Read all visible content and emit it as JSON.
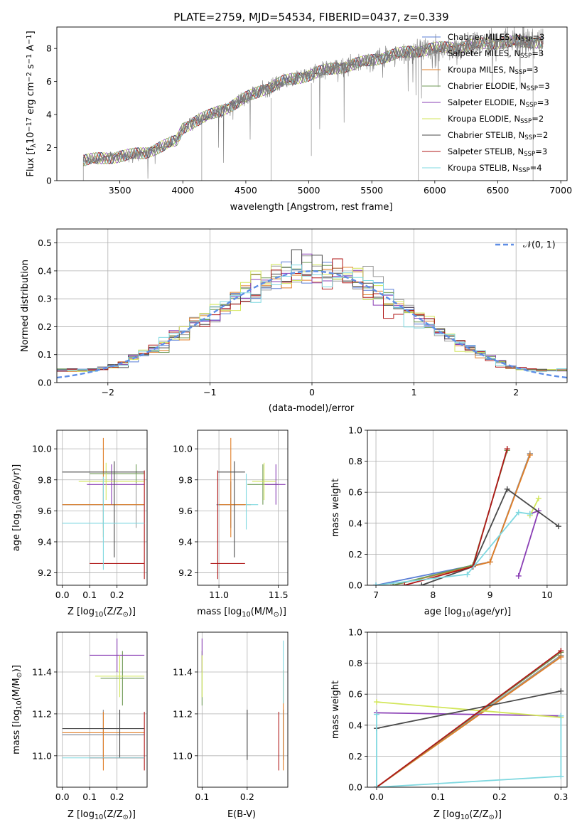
{
  "title": "PLATE=2759, MJD=54534, FIBERID=0437, z=0.339",
  "models": [
    {
      "label": "Chabrier MILES, N",
      "sub": "SSP",
      "tail": "=3",
      "color": "#5b7fd6"
    },
    {
      "label": "Salpeter MILES, N",
      "sub": "SSP",
      "tail": "=3",
      "color": "#9a9a9a"
    },
    {
      "label": "Kroupa MILES, N",
      "sub": "SSP",
      "tail": "=3",
      "color": "#e07e26"
    },
    {
      "label": "Chabrier ELODIE, N",
      "sub": "SSP",
      "tail": "=3",
      "color": "#6f9a56"
    },
    {
      "label": "Salpeter ELODIE, N",
      "sub": "SSP",
      "tail": "=3",
      "color": "#8a3fb5"
    },
    {
      "label": "Kroupa ELODIE, N",
      "sub": "SSP",
      "tail": "=2",
      "color": "#d2e65a"
    },
    {
      "label": "Chabrier STELIB, N",
      "sub": "SSP",
      "tail": "=2",
      "color": "#4a4a4a"
    },
    {
      "label": "Salpeter STELIB, N",
      "sub": "SSP",
      "tail": "=3",
      "color": "#b01818"
    },
    {
      "label": "Kroupa STELIB, N",
      "sub": "SSP",
      "tail": "=4",
      "color": "#7fd8e0"
    }
  ],
  "chart_data": [
    {
      "id": "spectrum",
      "type": "line",
      "title": "PLATE=2759, MJD=54534, FIBERID=0437, z=0.339",
      "xlabel": "wavelength [Angstrom, rest frame]",
      "ylabel_main": "Flux [f",
      "ylabel_sub": "λ",
      "ylabel_mid": "10",
      "ylabel_sup": "−17",
      "ylabel_rest": " erg cm",
      "ylabel_sup2": "−2",
      "ylabel_rest2": " s",
      "ylabel_sup3": "−1",
      "ylabel_rest3": " A",
      "ylabel_sup4": "−1",
      "ylabel_end": "]",
      "xlim": [
        3000,
        7050
      ],
      "ylim": [
        0,
        9.3
      ],
      "xticks": [
        3500,
        4000,
        4500,
        5000,
        5500,
        6000,
        6500,
        7000
      ],
      "yticks": [
        0,
        2,
        4,
        6,
        8
      ],
      "grid": false,
      "legend": "right",
      "data_range": [
        3210,
        6860
      ],
      "continuum": [
        [
          3210,
          1.2
        ],
        [
          3400,
          1.4
        ],
        [
          3550,
          1.5
        ],
        [
          3700,
          1.7
        ],
        [
          3850,
          2.1
        ],
        [
          3950,
          2.4
        ],
        [
          4000,
          3.2
        ],
        [
          4100,
          3.6
        ],
        [
          4200,
          3.9
        ],
        [
          4400,
          4.6
        ],
        [
          4600,
          5.4
        ],
        [
          4800,
          6.0
        ],
        [
          5000,
          6.4
        ],
        [
          5200,
          6.8
        ],
        [
          5400,
          7.1
        ],
        [
          5600,
          7.5
        ],
        [
          5800,
          7.8
        ],
        [
          6000,
          8.0
        ],
        [
          6200,
          8.1
        ],
        [
          6400,
          8.3
        ],
        [
          6600,
          8.4
        ],
        [
          6860,
          8.4
        ]
      ]
    },
    {
      "id": "residuals",
      "type": "line",
      "xlabel": "(data-model)/error",
      "ylabel": "Normed distribution",
      "xlim": [
        -2.5,
        2.5
      ],
      "ylim": [
        0,
        0.55
      ],
      "xticks": [
        -2,
        -1,
        0,
        1,
        2
      ],
      "yticks": [
        0.0,
        0.1,
        0.2,
        0.3,
        0.4,
        0.5
      ],
      "grid": true,
      "legend": "top-right",
      "legend_label": "𝒩(0, 1)",
      "legend_color": "#5f8ee6",
      "bin_width": 0.1
    },
    {
      "id": "age-vs-Z",
      "type": "scatter",
      "xlabel_main": "Z [log",
      "xlabel_sub": "10",
      "xlabel_rest": "(Z/Z",
      "xlabel_sub2": "⊙",
      "xlabel_end": ")]",
      "ylabel_main": "age  [log",
      "ylabel_sub": "10",
      "ylabel_rest": "(age/yr)]",
      "xlim": [
        -0.02,
        0.31
      ],
      "ylim": [
        9.12,
        10.12
      ],
      "xticks": [
        0.0,
        0.1,
        0.2
      ],
      "yticks": [
        9.2,
        9.4,
        9.6,
        9.8,
        10.0
      ],
      "grid": true,
      "points": [
        {
          "m": 0,
          "x": 0.15,
          "y": 9.64,
          "xerr": [
            0.15,
            0.15
          ],
          "yerr": [
            0.15,
            0.15
          ]
        },
        {
          "m": 1,
          "x": 0.27,
          "y": 9.64,
          "xerr": [
            0.27,
            0.03
          ],
          "yerr": [
            0.15,
            0.15
          ]
        },
        {
          "m": 2,
          "x": 0.15,
          "y": 9.64,
          "xerr": [
            0.15,
            0.15
          ],
          "yerr": [
            0.21,
            0.43
          ]
        },
        {
          "m": 3,
          "x": 0.27,
          "y": 9.84,
          "xerr": [
            0.17,
            0.03
          ],
          "yerr": [
            0.06,
            0.06
          ]
        },
        {
          "m": 4,
          "x": 0.18,
          "y": 9.77,
          "xerr": [
            0.09,
            0.12
          ],
          "yerr": [
            0.13,
            0.13
          ]
        },
        {
          "m": 5,
          "x": 0.16,
          "y": 9.79,
          "xerr": [
            0.1,
            0.14
          ],
          "yerr": [
            0.12,
            0.12
          ]
        },
        {
          "m": 6,
          "x": 0.19,
          "y": 9.85,
          "xerr": [
            0.19,
            0.11
          ],
          "yerr": [
            0.55,
            0.07
          ]
        },
        {
          "m": 7,
          "x": 0.3,
          "y": 9.26,
          "xerr": [
            0.2,
            0.0
          ],
          "yerr": [
            0.1,
            0.6
          ]
        },
        {
          "m": 8,
          "x": 0.15,
          "y": 9.52,
          "xerr": [
            0.15,
            0.15
          ],
          "yerr": [
            0.3,
            0.3
          ]
        }
      ]
    },
    {
      "id": "age-vs-mass",
      "type": "scatter",
      "xlabel_main": "mass [log",
      "xlabel_sub": "10",
      "xlabel_rest": "(M/M",
      "xlabel_sub2": "⊙",
      "xlabel_end": ")]",
      "xlim": [
        10.82,
        11.58
      ],
      "ylim": [
        9.12,
        10.12
      ],
      "xticks": [
        11.0,
        11.5
      ],
      "yticks": [
        9.2,
        9.4,
        9.6,
        9.8,
        10.0
      ],
      "grid": true,
      "points": [
        {
          "m": 0,
          "x": 11.1,
          "y": 9.64,
          "xerr": [
            0.12,
            0.12
          ],
          "yerr": [
            0.15,
            0.15
          ]
        },
        {
          "m": 1,
          "x": 11.1,
          "y": 9.64,
          "xerr": [
            0.12,
            0.12
          ],
          "yerr": [
            0.15,
            0.15
          ]
        },
        {
          "m": 2,
          "x": 11.1,
          "y": 9.64,
          "xerr": [
            0.1,
            0.17
          ],
          "yerr": [
            0.21,
            0.43
          ]
        },
        {
          "m": 3,
          "x": 11.37,
          "y": 9.77,
          "xerr": [
            0.13,
            0.13
          ],
          "yerr": [
            0.13,
            0.13
          ]
        },
        {
          "m": 4,
          "x": 11.48,
          "y": 9.77,
          "xerr": [
            0.1,
            0.08
          ],
          "yerr": [
            0.13,
            0.13
          ]
        },
        {
          "m": 5,
          "x": 11.38,
          "y": 9.79,
          "xerr": [
            0.1,
            0.1
          ],
          "yerr": [
            0.12,
            0.12
          ]
        },
        {
          "m": 6,
          "x": 11.13,
          "y": 9.85,
          "xerr": [
            0.14,
            0.09
          ],
          "yerr": [
            0.55,
            0.07
          ]
        },
        {
          "m": 7,
          "x": 10.99,
          "y": 9.26,
          "xerr": [
            0.06,
            0.23
          ],
          "yerr": [
            0.1,
            0.6
          ]
        },
        {
          "m": 8,
          "x": 11.23,
          "y": 9.64,
          "xerr": [
            0.0,
            0.1
          ],
          "yerr": [
            0.16,
            0.2
          ]
        }
      ]
    },
    {
      "id": "weight-vs-age",
      "type": "line",
      "xlabel_main": "age  [log",
      "xlabel_sub": "10",
      "xlabel_rest": "(age/yr)]",
      "ylabel": "mass weight",
      "xlim": [
        6.85,
        10.35
      ],
      "ylim": [
        0.0,
        1.0
      ],
      "xticks": [
        7,
        8,
        9,
        10
      ],
      "yticks": [
        0.0,
        0.2,
        0.4,
        0.6,
        0.8,
        1.0
      ],
      "grid": true,
      "series": [
        {
          "m": 0,
          "x": [
            7.0,
            9.0,
            9.7
          ],
          "y": [
            0.0,
            0.15,
            0.85
          ]
        },
        {
          "m": 1,
          "x": [
            7.3,
            9.0,
            9.7
          ],
          "y": [
            0.0,
            0.15,
            0.85
          ]
        },
        {
          "m": 2,
          "x": [
            7.3,
            9.0,
            9.7
          ],
          "y": [
            0.0,
            0.15,
            0.84
          ]
        },
        {
          "m": 3,
          "x": [
            7.3,
            8.7,
            9.3
          ],
          "y": [
            0.0,
            0.13,
            0.87
          ]
        },
        {
          "m": 4,
          "x": [
            9.5,
            9.85,
            9.7
          ],
          "y": [
            0.06,
            0.48,
            0.46
          ]
        },
        {
          "m": 5,
          "x": [
            9.7,
            9.85
          ],
          "y": [
            0.45,
            0.56
          ]
        },
        {
          "m": 6,
          "x": [
            7.8,
            8.7,
            9.3,
            10.2
          ],
          "y": [
            0.0,
            0.12,
            0.62,
            0.38
          ]
        },
        {
          "m": 7,
          "x": [
            7.5,
            8.7,
            9.3
          ],
          "y": [
            0.0,
            0.12,
            0.88
          ]
        },
        {
          "m": 8,
          "x": [
            7.0,
            8.6,
            9.5,
            9.7
          ],
          "y": [
            0.0,
            0.07,
            0.47,
            0.46
          ]
        }
      ]
    },
    {
      "id": "mass-vs-Z",
      "type": "scatter",
      "xlabel_main": "Z [log",
      "xlabel_sub": "10",
      "xlabel_rest": "(Z/Z",
      "xlabel_sub2": "⊙",
      "xlabel_end": ")]",
      "ylabel_main": "mass [log",
      "ylabel_sub": "10",
      "ylabel_rest": "(M/M",
      "ylabel_sub2": "⊙",
      "ylabel_end": ")]",
      "xlim": [
        -0.02,
        0.31
      ],
      "ylim": [
        10.85,
        11.59
      ],
      "xticks": [
        0.0,
        0.1,
        0.2
      ],
      "yticks": [
        11.0,
        11.2,
        11.4
      ],
      "grid": true,
      "points": [
        {
          "m": 0,
          "x": 0.15,
          "y": 11.1,
          "xerr": [
            0.15,
            0.15
          ],
          "yerr": [
            0.12,
            0.12
          ]
        },
        {
          "m": 1,
          "x": 0.15,
          "y": 11.1,
          "xerr": [
            0.15,
            0.15
          ],
          "yerr": [
            0.12,
            0.12
          ]
        },
        {
          "m": 2,
          "x": 0.15,
          "y": 11.11,
          "xerr": [
            0.15,
            0.15
          ],
          "yerr": [
            0.18,
            0.1
          ]
        },
        {
          "m": 3,
          "x": 0.22,
          "y": 11.37,
          "xerr": [
            0.08,
            0.08
          ],
          "yerr": [
            0.13,
            0.13
          ]
        },
        {
          "m": 4,
          "x": 0.2,
          "y": 11.48,
          "xerr": [
            0.1,
            0.1
          ],
          "yerr": [
            0.08,
            0.08
          ]
        },
        {
          "m": 5,
          "x": 0.21,
          "y": 11.38,
          "xerr": [
            0.09,
            0.09
          ],
          "yerr": [
            0.1,
            0.1
          ]
        },
        {
          "m": 6,
          "x": 0.21,
          "y": 11.13,
          "xerr": [
            0.21,
            0.09
          ],
          "yerr": [
            0.14,
            0.09
          ]
        },
        {
          "m": 7,
          "x": 0.3,
          "y": 10.99,
          "xerr": [
            0.2,
            0.0
          ],
          "yerr": [
            0.06,
            0.22
          ]
        },
        {
          "m": 8,
          "x": 0.1,
          "y": 10.99,
          "xerr": [
            0.1,
            0.2
          ],
          "yerr": [
            0.0,
            0.0
          ]
        }
      ]
    },
    {
      "id": "mass-vs-EBV",
      "type": "scatter",
      "xlabel": "E(B-V)",
      "xlim": [
        0.09,
        0.29
      ],
      "ylim": [
        10.85,
        11.59
      ],
      "xticks": [
        0.1,
        0.2
      ],
      "yticks": [
        11.0,
        11.2,
        11.4
      ],
      "grid": true,
      "points": [
        {
          "m": 0,
          "x": 0.28,
          "y": 11.1,
          "xerr": [
            0,
            0
          ],
          "yerr": [
            0.12,
            0.12
          ]
        },
        {
          "m": 1,
          "x": 0.28,
          "y": 11.1,
          "xerr": [
            0,
            0
          ],
          "yerr": [
            0.12,
            0.12
          ]
        },
        {
          "m": 2,
          "x": 0.28,
          "y": 11.11,
          "xerr": [
            0,
            0
          ],
          "yerr": [
            0.18,
            0.3
          ]
        },
        {
          "m": 3,
          "x": 0.1,
          "y": 11.37,
          "xerr": [
            0,
            0
          ],
          "yerr": [
            0.13,
            0.13
          ]
        },
        {
          "m": 4,
          "x": 0.1,
          "y": 11.48,
          "xerr": [
            0,
            0
          ],
          "yerr": [
            0.08,
            0.08
          ]
        },
        {
          "m": 5,
          "x": 0.1,
          "y": 11.38,
          "xerr": [
            0,
            0
          ],
          "yerr": [
            0.1,
            0.1
          ]
        },
        {
          "m": 6,
          "x": 0.2,
          "y": 11.1,
          "xerr": [
            0,
            0
          ],
          "yerr": [
            0.12,
            0.12
          ]
        },
        {
          "m": 7,
          "x": 0.27,
          "y": 11.07,
          "xerr": [
            0,
            0
          ],
          "yerr": [
            0.14,
            0.14
          ]
        },
        {
          "m": 8,
          "x": 0.28,
          "y": 11.4,
          "xerr": [
            0,
            0
          ],
          "yerr": [
            0.15,
            0.15
          ]
        }
      ]
    },
    {
      "id": "weight-vs-Z",
      "type": "line",
      "xlabel_main": "Z [log",
      "xlabel_sub": "10",
      "xlabel_rest": "(Z/Z",
      "xlabel_sub2": "⊙",
      "xlabel_end": ")]",
      "ylabel": "mass weight",
      "xlim": [
        -0.015,
        0.31
      ],
      "ylim": [
        0.0,
        1.0
      ],
      "xticks": [
        0.0,
        0.1,
        0.2,
        0.3
      ],
      "yticks": [
        0.0,
        0.2,
        0.4,
        0.6,
        0.8,
        1.0
      ],
      "grid": true,
      "series": [
        {
          "m": 0,
          "x": [
            0.0,
            0.3
          ],
          "y": [
            0.0,
            0.85
          ]
        },
        {
          "m": 1,
          "x": [
            0.0,
            0.3
          ],
          "y": [
            0.0,
            0.85
          ]
        },
        {
          "m": 2,
          "x": [
            0.0,
            0.3
          ],
          "y": [
            0.0,
            0.84
          ]
        },
        {
          "m": 3,
          "x": [
            0.0,
            0.3
          ],
          "y": [
            0.0,
            0.87
          ]
        },
        {
          "m": 4,
          "x": [
            0.0,
            0.3
          ],
          "y": [
            0.48,
            0.46
          ]
        },
        {
          "m": 5,
          "x": [
            0.0,
            0.3
          ],
          "y": [
            0.55,
            0.45
          ]
        },
        {
          "m": 6,
          "x": [
            0.0,
            0.3
          ],
          "y": [
            0.38,
            0.62
          ]
        },
        {
          "m": 7,
          "x": [
            0.0,
            0.3
          ],
          "y": [
            0.0,
            0.88
          ]
        },
        {
          "m": 8,
          "x": [
            0.0,
            0.0,
            0.3,
            0.3
          ],
          "y": [
            0.47,
            0.0,
            0.07,
            0.46
          ]
        }
      ]
    }
  ]
}
